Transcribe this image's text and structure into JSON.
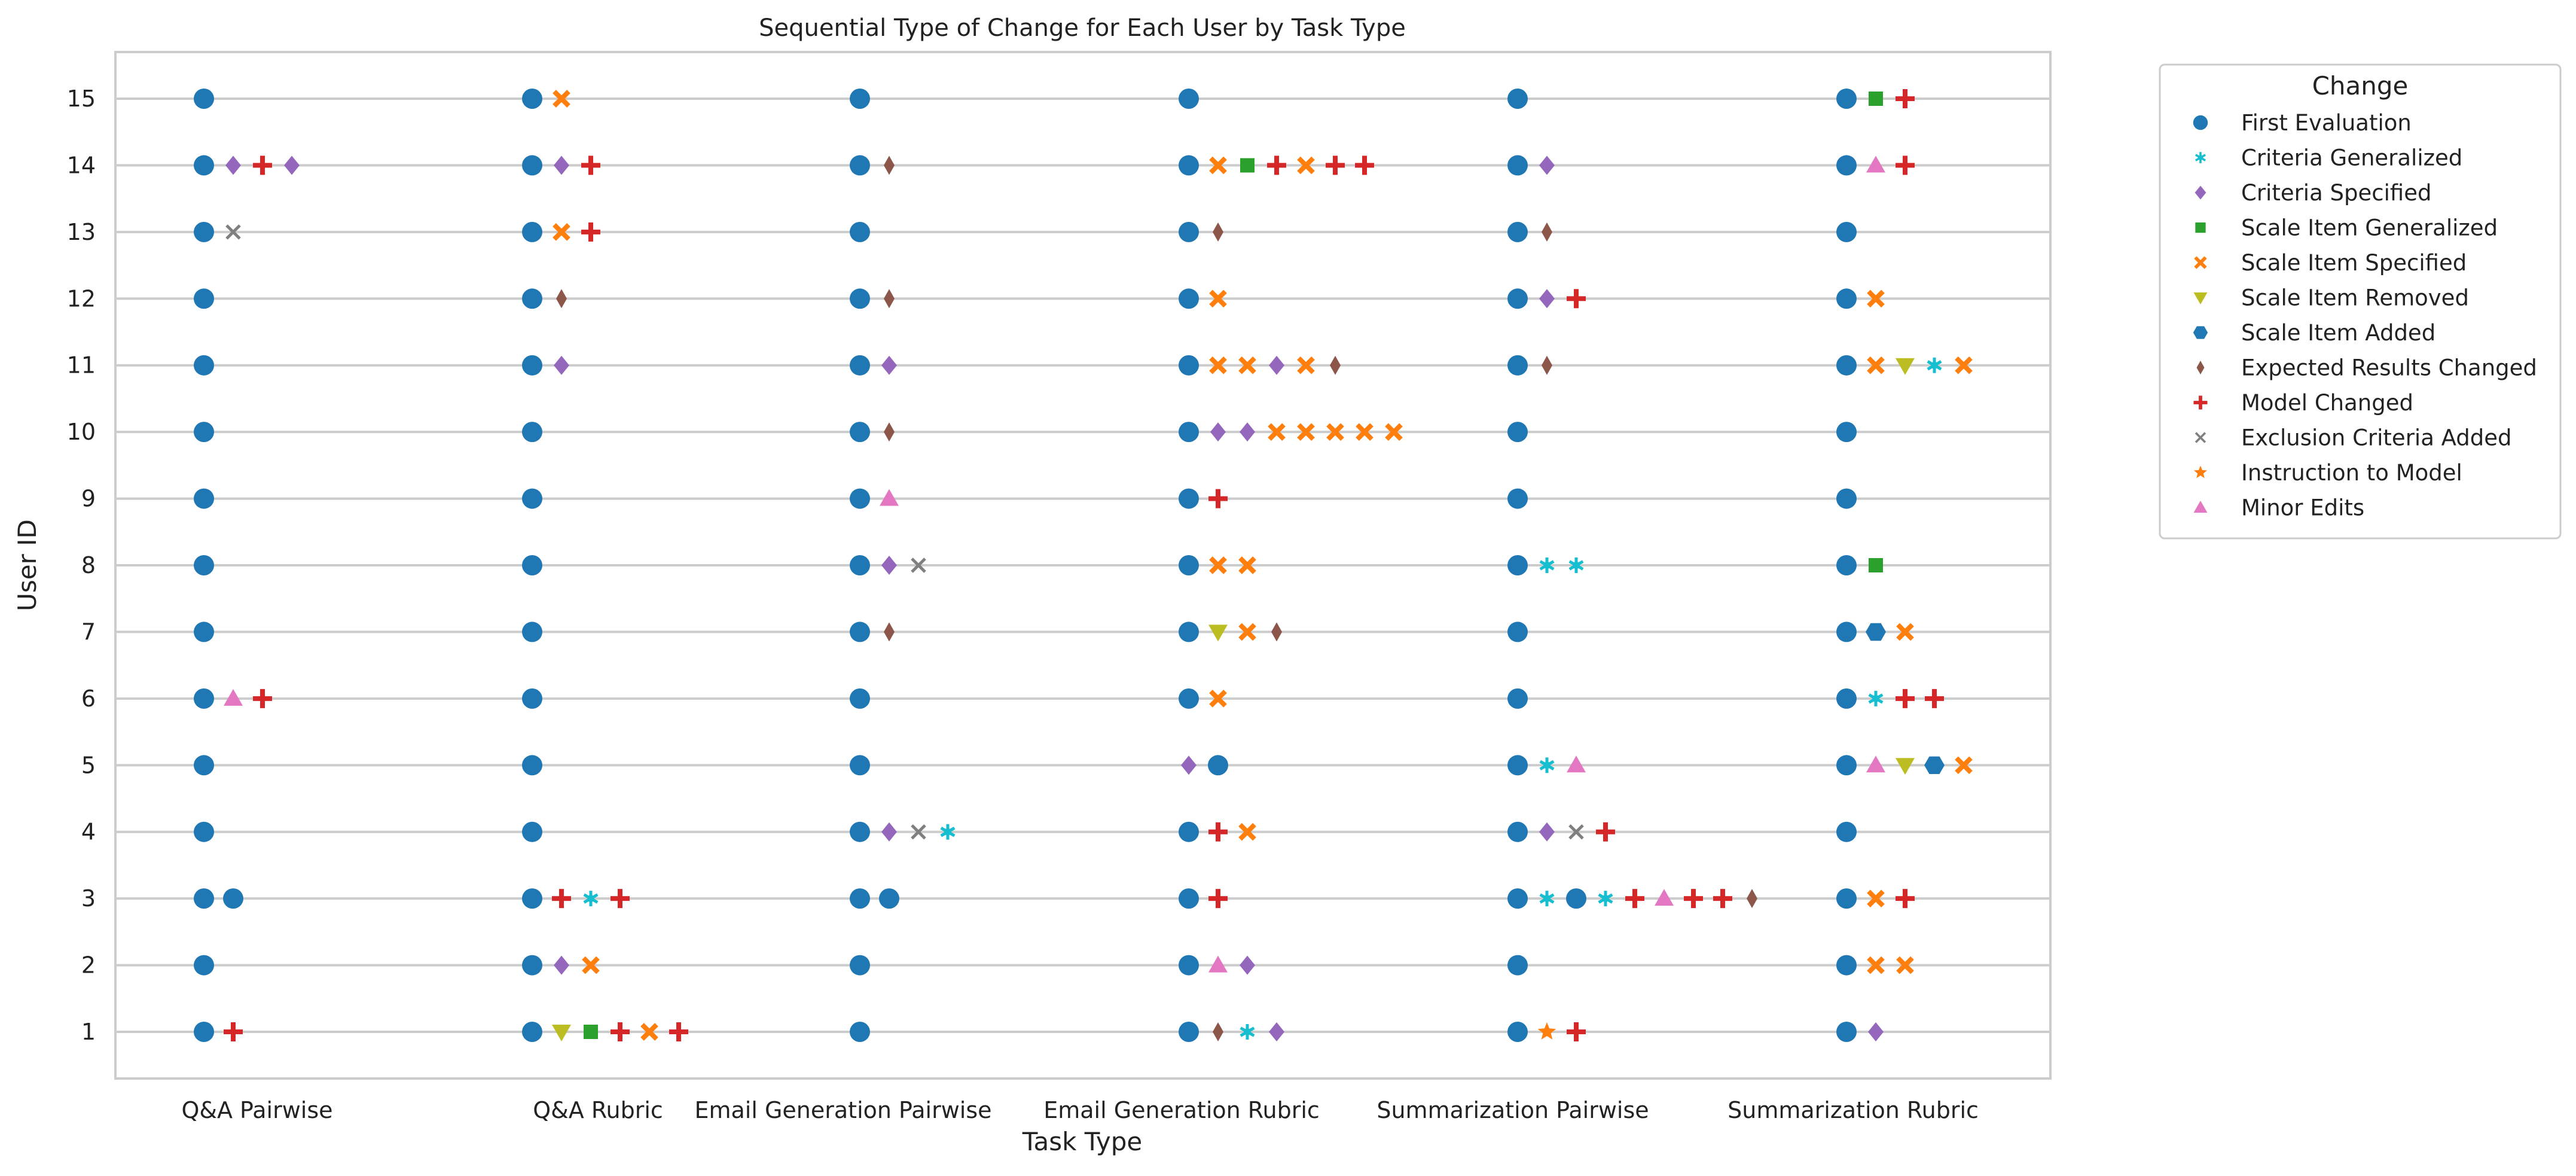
{
  "chart_data": {
    "type": "scatter",
    "title": "Sequential Type of Change for Each User by Task Type",
    "xlabel": "Task Type",
    "ylabel": "User ID",
    "categories": [
      "Q&A Pairwise",
      "Q&A Rubric",
      "Email Generation Pairwise",
      "Email Generation Rubric",
      "Summarization Pairwise",
      "Summarization Rubric"
    ],
    "y_ticks": [
      "1",
      "2",
      "3",
      "4",
      "5",
      "6",
      "7",
      "8",
      "9",
      "10",
      "11",
      "12",
      "13",
      "14",
      "15"
    ],
    "ylim": [
      0.3,
      15.7
    ],
    "grid": "horizontal",
    "legend": {
      "title": "Change",
      "position": "outside-top-right",
      "entries": [
        {
          "label": "First Evaluation",
          "marker": "circle",
          "color": "#1f77b4"
        },
        {
          "label": "Criteria Generalized",
          "marker": "star",
          "color": "#17becf"
        },
        {
          "label": "Criteria Specified",
          "marker": "diamond",
          "color": "#9467bd"
        },
        {
          "label": "Scale Item Generalized",
          "marker": "square",
          "color": "#2ca02c"
        },
        {
          "label": "Scale Item Specified",
          "marker": "x",
          "color": "#ff7f0e"
        },
        {
          "label": "Scale Item Removed",
          "marker": "triangle-down",
          "color": "#bcbd22"
        },
        {
          "label": "Scale Item Added",
          "marker": "hexagon",
          "color": "#1f77b4"
        },
        {
          "label": "Expected Results Changed",
          "marker": "thin-diamond",
          "color": "#8c564b"
        },
        {
          "label": "Model Changed",
          "marker": "plus",
          "color": "#d62728"
        },
        {
          "label": "Exclusion Criteria Added",
          "marker": "x-thin",
          "color": "#7f7f7f"
        },
        {
          "label": "Instruction to Model",
          "marker": "pentastar",
          "color": "#ff7f0e"
        },
        {
          "label": "Minor Edits",
          "marker": "triangle-up",
          "color": "#e377c2"
        }
      ]
    },
    "sequences": {
      "Q&A Pairwise": {
        "15": [
          "First Evaluation"
        ],
        "14": [
          "First Evaluation",
          "Criteria Specified",
          "Model Changed",
          "Criteria Specified"
        ],
        "13": [
          "First Evaluation",
          "Exclusion Criteria Added"
        ],
        "12": [
          "First Evaluation"
        ],
        "11": [
          "First Evaluation"
        ],
        "10": [
          "First Evaluation"
        ],
        "9": [
          "First Evaluation"
        ],
        "8": [
          "First Evaluation"
        ],
        "7": [
          "First Evaluation"
        ],
        "6": [
          "First Evaluation",
          "Minor Edits",
          "Model Changed"
        ],
        "5": [
          "First Evaluation"
        ],
        "4": [
          "First Evaluation"
        ],
        "3": [
          "First Evaluation",
          "First Evaluation"
        ],
        "2": [
          "First Evaluation"
        ],
        "1": [
          "First Evaluation",
          "Model Changed"
        ]
      },
      "Q&A Rubric": {
        "15": [
          "First Evaluation",
          "Scale Item Specified"
        ],
        "14": [
          "First Evaluation",
          "Criteria Specified",
          "Model Changed"
        ],
        "13": [
          "First Evaluation",
          "Scale Item Specified",
          "Model Changed"
        ],
        "12": [
          "First Evaluation",
          "Expected Results Changed"
        ],
        "11": [
          "First Evaluation",
          "Criteria Specified"
        ],
        "10": [
          "First Evaluation"
        ],
        "9": [
          "First Evaluation"
        ],
        "8": [
          "First Evaluation"
        ],
        "7": [
          "First Evaluation"
        ],
        "6": [
          "First Evaluation"
        ],
        "5": [
          "First Evaluation"
        ],
        "4": [
          "First Evaluation"
        ],
        "3": [
          "First Evaluation",
          "Model Changed",
          "Criteria Generalized",
          "Model Changed"
        ],
        "2": [
          "First Evaluation",
          "Criteria Specified",
          "Scale Item Specified"
        ],
        "1": [
          "First Evaluation",
          "Scale Item Removed",
          "Scale Item Generalized",
          "Model Changed",
          "Scale Item Specified",
          "Model Changed"
        ]
      },
      "Email Generation Pairwise": {
        "15": [
          "First Evaluation"
        ],
        "14": [
          "First Evaluation",
          "Expected Results Changed"
        ],
        "13": [
          "First Evaluation"
        ],
        "12": [
          "First Evaluation",
          "Expected Results Changed"
        ],
        "11": [
          "First Evaluation",
          "Criteria Specified"
        ],
        "10": [
          "First Evaluation",
          "Expected Results Changed"
        ],
        "9": [
          "First Evaluation",
          "Minor Edits"
        ],
        "8": [
          "First Evaluation",
          "Criteria Specified",
          "Exclusion Criteria Added"
        ],
        "7": [
          "First Evaluation",
          "Expected Results Changed"
        ],
        "6": [
          "First Evaluation"
        ],
        "5": [
          "First Evaluation"
        ],
        "4": [
          "First Evaluation",
          "Criteria Specified",
          "Exclusion Criteria Added",
          "Criteria Generalized"
        ],
        "3": [
          "First Evaluation",
          "First Evaluation"
        ],
        "2": [
          "First Evaluation"
        ],
        "1": [
          "First Evaluation"
        ]
      },
      "Email Generation Rubric": {
        "15": [
          "First Evaluation"
        ],
        "14": [
          "First Evaluation",
          "Scale Item Specified",
          "Scale Item Generalized",
          "Model Changed",
          "Scale Item Specified",
          "Model Changed",
          "Model Changed"
        ],
        "13": [
          "First Evaluation",
          "Expected Results Changed"
        ],
        "12": [
          "First Evaluation",
          "Scale Item Specified"
        ],
        "11": [
          "First Evaluation",
          "Scale Item Specified",
          "Scale Item Specified",
          "Criteria Specified",
          "Scale Item Specified",
          "Expected Results Changed"
        ],
        "10": [
          "First Evaluation",
          "Criteria Specified",
          "Criteria Specified",
          "Scale Item Specified",
          "Scale Item Specified",
          "Scale Item Specified",
          "Scale Item Specified",
          "Scale Item Specified"
        ],
        "9": [
          "First Evaluation",
          "Model Changed"
        ],
        "8": [
          "First Evaluation",
          "Scale Item Specified",
          "Scale Item Specified"
        ],
        "7": [
          "First Evaluation",
          "Scale Item Removed",
          "Scale Item Specified",
          "Expected Results Changed"
        ],
        "6": [
          "First Evaluation",
          "Scale Item Specified"
        ],
        "5": [
          "Criteria Specified",
          "First Evaluation"
        ],
        "4": [
          "First Evaluation",
          "Model Changed",
          "Scale Item Specified"
        ],
        "3": [
          "First Evaluation",
          "Model Changed"
        ],
        "2": [
          "First Evaluation",
          "Minor Edits",
          "Criteria Specified"
        ],
        "1": [
          "First Evaluation",
          "Expected Results Changed",
          "Criteria Generalized",
          "Criteria Specified"
        ]
      },
      "Summarization Pairwise": {
        "15": [
          "First Evaluation"
        ],
        "14": [
          "First Evaluation",
          "Criteria Specified"
        ],
        "13": [
          "First Evaluation",
          "Expected Results Changed"
        ],
        "12": [
          "First Evaluation",
          "Criteria Specified",
          "Model Changed"
        ],
        "11": [
          "First Evaluation",
          "Expected Results Changed"
        ],
        "10": [
          "First Evaluation"
        ],
        "9": [
          "First Evaluation"
        ],
        "8": [
          "First Evaluation",
          "Criteria Generalized",
          "Criteria Generalized"
        ],
        "7": [
          "First Evaluation"
        ],
        "6": [
          "First Evaluation"
        ],
        "5": [
          "First Evaluation",
          "Criteria Generalized",
          "Minor Edits"
        ],
        "4": [
          "First Evaluation",
          "Criteria Specified",
          "Exclusion Criteria Added",
          "Model Changed"
        ],
        "3": [
          "First Evaluation",
          "Criteria Generalized",
          "First Evaluation",
          "Criteria Generalized",
          "Model Changed",
          "Minor Edits",
          "Model Changed",
          "Model Changed",
          "Expected Results Changed"
        ],
        "2": [
          "First Evaluation"
        ],
        "1": [
          "First Evaluation",
          "Instruction to Model",
          "Model Changed"
        ]
      },
      "Summarization Rubric": {
        "15": [
          "First Evaluation",
          "Scale Item Generalized",
          "Model Changed"
        ],
        "14": [
          "First Evaluation",
          "Minor Edits",
          "Model Changed"
        ],
        "13": [
          "First Evaluation"
        ],
        "12": [
          "First Evaluation",
          "Scale Item Specified"
        ],
        "11": [
          "First Evaluation",
          "Scale Item Specified",
          "Scale Item Removed",
          "Criteria Generalized",
          "Scale Item Specified"
        ],
        "10": [
          "First Evaluation"
        ],
        "9": [
          "First Evaluation"
        ],
        "8": [
          "First Evaluation",
          "Scale Item Generalized"
        ],
        "7": [
          "First Evaluation",
          "Scale Item Added",
          "Scale Item Specified"
        ],
        "6": [
          "First Evaluation",
          "Criteria Generalized",
          "Model Changed",
          "Model Changed"
        ],
        "5": [
          "First Evaluation",
          "Minor Edits",
          "Scale Item Removed",
          "Scale Item Added",
          "Scale Item Specified"
        ],
        "4": [
          "First Evaluation"
        ],
        "3": [
          "First Evaluation",
          "Scale Item Specified",
          "Model Changed"
        ],
        "2": [
          "First Evaluation",
          "Scale Item Specified",
          "Scale Item Specified"
        ],
        "1": [
          "First Evaluation",
          "Criteria Specified"
        ]
      }
    }
  }
}
